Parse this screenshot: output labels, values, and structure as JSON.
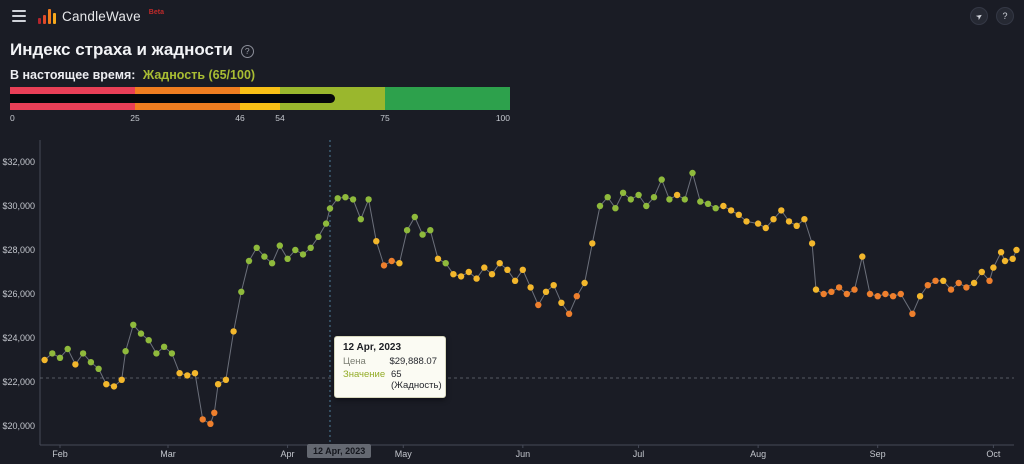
{
  "header": {
    "app_name": "CandleWave",
    "beta_tag": "Beta",
    "icons": {
      "menu": "hamburger-icon",
      "telegram": "paper-plane-icon",
      "help": "question-circle-icon"
    }
  },
  "page": {
    "title": "Индекс страха и жадности",
    "help_glyph": "?",
    "current_label": "В настоящее время:",
    "current_value": "Жадность (65/100)",
    "current_value_color": "#a9bd33"
  },
  "gauge": {
    "min": 0,
    "max": 100,
    "value": 65,
    "segments": [
      {
        "from": 0,
        "to": 25,
        "color": "#e83f56"
      },
      {
        "from": 25,
        "to": 46,
        "color": "#ef7d20"
      },
      {
        "from": 46,
        "to": 54,
        "color": "#f8c016"
      },
      {
        "from": 54,
        "to": 75,
        "color": "#9ab72d"
      },
      {
        "from": 75,
        "to": 100,
        "color": "#2da14c"
      }
    ],
    "tick_labels": [
      "0",
      "25",
      "46",
      "54",
      "75",
      "100"
    ],
    "tick_positions": [
      0,
      25,
      46,
      54,
      75,
      100
    ],
    "indicator_color": "#06080b"
  },
  "tooltip": {
    "date": "12 Apr, 2023",
    "price_label": "Цена",
    "price": "$29,888.07",
    "value_label": "Значение",
    "value": "65 (Жадность)"
  },
  "axis_marker": "12 Apr, 2023",
  "chart_data": {
    "type": "scatter-line",
    "title": "Bitcoin price colored by Fear & Greed index",
    "xlabel": "",
    "ylabel": "",
    "y_ticks": [
      "$32,000",
      "$30,000",
      "$28,000",
      "$26,000",
      "$24,000",
      "$22,000",
      "$20,000"
    ],
    "y_tick_values": [
      32000,
      30000,
      28000,
      26000,
      24000,
      22000,
      20000
    ],
    "x_ticks": [
      "Feb",
      "Mar",
      "Apr",
      "May",
      "Jun",
      "Jul",
      "Aug",
      "Sep",
      "Oct"
    ],
    "x_tick_days": [
      0,
      28,
      59,
      89,
      120,
      150,
      181,
      212,
      242
    ],
    "x_range_days": [
      -5,
      249
    ],
    "y_range": [
      19000,
      33000
    ],
    "grid": "off",
    "reference_price": 22180,
    "selected": {
      "day": 70,
      "date": "12 Apr, 2023",
      "price": 29888.07,
      "index_value": 65,
      "index_label": "Жадность"
    },
    "point_colors": {
      "g": "#8fba3c",
      "y": "#f3b72c",
      "o": "#ee7f2d"
    },
    "legend_meaning": {
      "g": "greed 55-75",
      "y": "neutral 46-54",
      "o": "fear 25-45"
    },
    "line_color": "rgba(190,196,210,0.5)",
    "vline_color": "#4e7d9c",
    "points": [
      [
        -4,
        23.0,
        "y"
      ],
      [
        -2,
        23.3,
        "g"
      ],
      [
        0,
        23.1,
        "g"
      ],
      [
        2,
        23.5,
        "g"
      ],
      [
        4,
        22.8,
        "y"
      ],
      [
        6,
        23.3,
        "g"
      ],
      [
        8,
        22.9,
        "g"
      ],
      [
        10,
        22.6,
        "g"
      ],
      [
        12,
        21.9,
        "y"
      ],
      [
        14,
        21.8,
        "y"
      ],
      [
        16,
        22.1,
        "y"
      ],
      [
        17,
        23.4,
        "g"
      ],
      [
        19,
        24.6,
        "g"
      ],
      [
        21,
        24.2,
        "g"
      ],
      [
        23,
        23.9,
        "g"
      ],
      [
        25,
        23.3,
        "g"
      ],
      [
        27,
        23.6,
        "g"
      ],
      [
        29,
        23.3,
        "g"
      ],
      [
        31,
        22.4,
        "y"
      ],
      [
        33,
        22.3,
        "y"
      ],
      [
        35,
        22.4,
        "y"
      ],
      [
        37,
        20.3,
        "o"
      ],
      [
        39,
        20.1,
        "o"
      ],
      [
        40,
        20.6,
        "o"
      ],
      [
        41,
        21.9,
        "y"
      ],
      [
        43,
        22.1,
        "y"
      ],
      [
        45,
        24.3,
        "y"
      ],
      [
        47,
        26.1,
        "g"
      ],
      [
        49,
        27.5,
        "g"
      ],
      [
        51,
        28.1,
        "g"
      ],
      [
        53,
        27.7,
        "g"
      ],
      [
        55,
        27.4,
        "g"
      ],
      [
        57,
        28.2,
        "g"
      ],
      [
        59,
        27.6,
        "g"
      ],
      [
        61,
        28.0,
        "g"
      ],
      [
        63,
        27.8,
        "g"
      ],
      [
        65,
        28.1,
        "g"
      ],
      [
        67,
        28.6,
        "g"
      ],
      [
        69,
        29.2,
        "g"
      ],
      [
        70,
        29.888,
        "g"
      ],
      [
        72,
        30.35,
        "g"
      ],
      [
        74,
        30.4,
        "g"
      ],
      [
        76,
        30.3,
        "g"
      ],
      [
        78,
        29.4,
        "g"
      ],
      [
        80,
        30.3,
        "g"
      ],
      [
        82,
        28.4,
        "y"
      ],
      [
        84,
        27.3,
        "o"
      ],
      [
        86,
        27.5,
        "o"
      ],
      [
        88,
        27.4,
        "y"
      ],
      [
        90,
        28.9,
        "g"
      ],
      [
        92,
        29.5,
        "g"
      ],
      [
        94,
        28.7,
        "g"
      ],
      [
        96,
        28.9,
        "g"
      ],
      [
        98,
        27.6,
        "y"
      ],
      [
        100,
        27.4,
        "g"
      ],
      [
        102,
        26.9,
        "y"
      ],
      [
        104,
        26.8,
        "y"
      ],
      [
        106,
        27.0,
        "y"
      ],
      [
        108,
        26.7,
        "y"
      ],
      [
        110,
        27.2,
        "y"
      ],
      [
        112,
        26.9,
        "y"
      ],
      [
        114,
        27.4,
        "y"
      ],
      [
        116,
        27.1,
        "y"
      ],
      [
        118,
        26.6,
        "y"
      ],
      [
        120,
        27.1,
        "y"
      ],
      [
        122,
        26.3,
        "y"
      ],
      [
        124,
        25.5,
        "o"
      ],
      [
        126,
        26.1,
        "y"
      ],
      [
        128,
        26.4,
        "y"
      ],
      [
        130,
        25.6,
        "y"
      ],
      [
        132,
        25.1,
        "o"
      ],
      [
        134,
        25.9,
        "o"
      ],
      [
        136,
        26.5,
        "y"
      ],
      [
        138,
        28.3,
        "y"
      ],
      [
        140,
        30.0,
        "g"
      ],
      [
        142,
        30.4,
        "g"
      ],
      [
        144,
        29.9,
        "g"
      ],
      [
        146,
        30.6,
        "g"
      ],
      [
        148,
        30.3,
        "g"
      ],
      [
        150,
        30.5,
        "g"
      ],
      [
        152,
        30.0,
        "g"
      ],
      [
        154,
        30.4,
        "g"
      ],
      [
        156,
        31.2,
        "g"
      ],
      [
        158,
        30.3,
        "g"
      ],
      [
        160,
        30.5,
        "y"
      ],
      [
        162,
        30.3,
        "g"
      ],
      [
        164,
        31.5,
        "g"
      ],
      [
        166,
        30.2,
        "g"
      ],
      [
        168,
        30.1,
        "g"
      ],
      [
        170,
        29.9,
        "g"
      ],
      [
        172,
        30.0,
        "y"
      ],
      [
        174,
        29.8,
        "y"
      ],
      [
        176,
        29.6,
        "y"
      ],
      [
        178,
        29.3,
        "y"
      ],
      [
        181,
        29.2,
        "y"
      ],
      [
        183,
        29.0,
        "y"
      ],
      [
        185,
        29.4,
        "y"
      ],
      [
        187,
        29.8,
        "y"
      ],
      [
        189,
        29.3,
        "y"
      ],
      [
        191,
        29.1,
        "y"
      ],
      [
        193,
        29.4,
        "y"
      ],
      [
        195,
        28.3,
        "y"
      ],
      [
        196,
        26.2,
        "y"
      ],
      [
        198,
        26.0,
        "o"
      ],
      [
        200,
        26.1,
        "o"
      ],
      [
        202,
        26.3,
        "o"
      ],
      [
        204,
        26.0,
        "o"
      ],
      [
        206,
        26.2,
        "o"
      ],
      [
        208,
        27.7,
        "y"
      ],
      [
        210,
        26.0,
        "o"
      ],
      [
        212,
        25.9,
        "o"
      ],
      [
        214,
        26.0,
        "o"
      ],
      [
        216,
        25.9,
        "o"
      ],
      [
        218,
        26.0,
        "o"
      ],
      [
        221,
        25.1,
        "o"
      ],
      [
        223,
        25.9,
        "y"
      ],
      [
        225,
        26.4,
        "o"
      ],
      [
        227,
        26.6,
        "o"
      ],
      [
        229,
        26.6,
        "y"
      ],
      [
        231,
        26.2,
        "o"
      ],
      [
        233,
        26.5,
        "o"
      ],
      [
        235,
        26.3,
        "o"
      ],
      [
        237,
        26.5,
        "y"
      ],
      [
        239,
        27.0,
        "y"
      ],
      [
        241,
        26.6,
        "o"
      ],
      [
        242,
        27.2,
        "y"
      ],
      [
        244,
        27.9,
        "y"
      ],
      [
        245,
        27.5,
        "y"
      ],
      [
        247,
        27.6,
        "y"
      ],
      [
        248,
        28.0,
        "y"
      ]
    ]
  }
}
